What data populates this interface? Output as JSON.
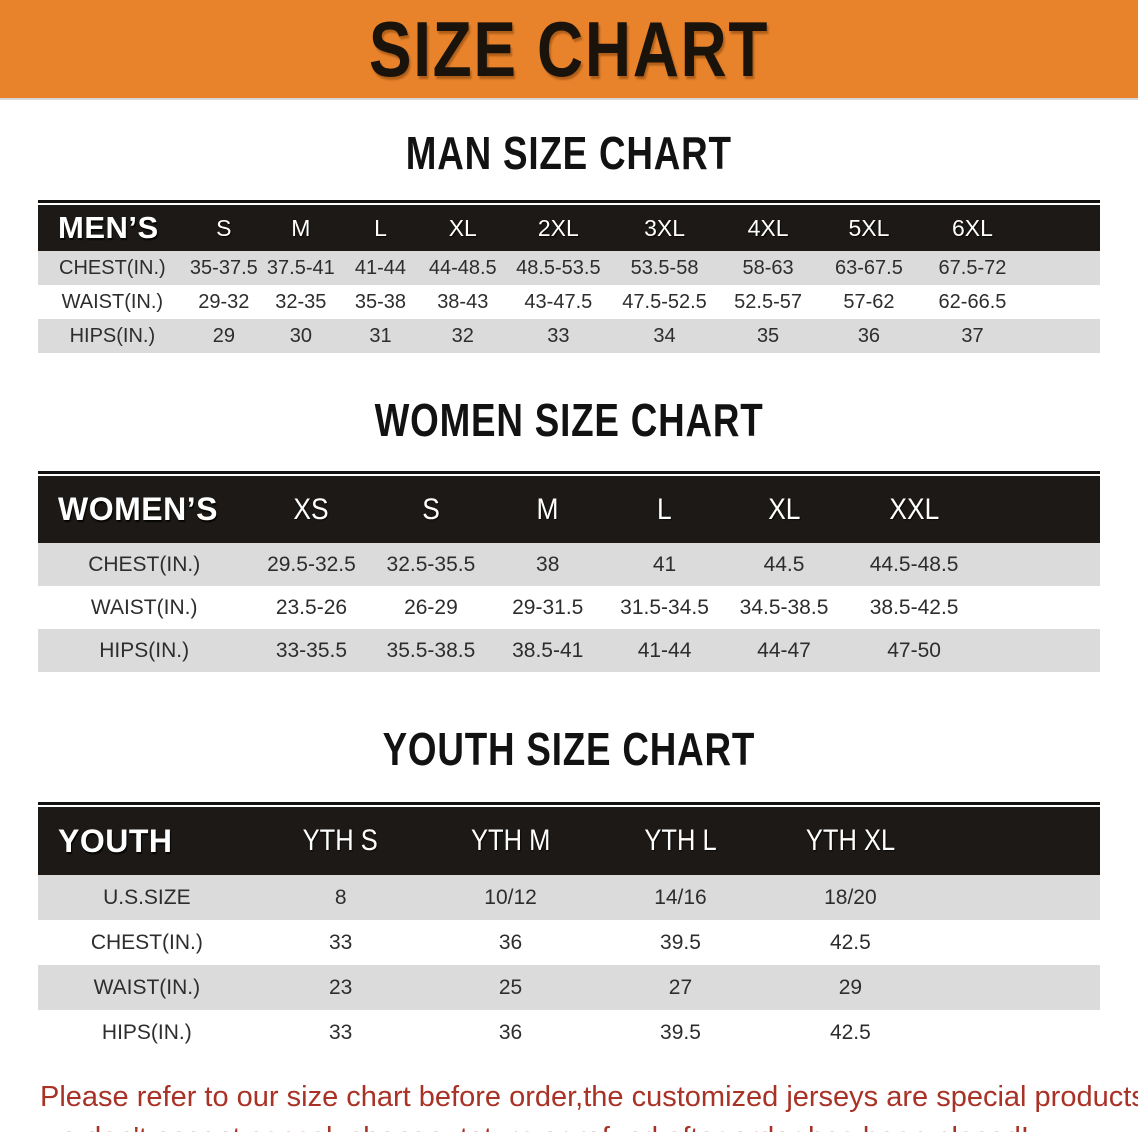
{
  "banner": {
    "title": "SIZE CHART"
  },
  "colors": {
    "banner_bg": "#E8832B",
    "banner_text": "#1A130B",
    "header_bar_bg": "#1C1916",
    "header_bar_text": "#FFFFFF",
    "row_alt_bg": "#DBDBDB",
    "row_bg": "#FFFFFF",
    "row_text": "#2D2D2D",
    "footer_text": "#A93226"
  },
  "sections": [
    {
      "id": "men",
      "heading": "MAN SIZE CHART",
      "corner_label": "MEN’S",
      "sizes": [
        "S",
        "M",
        "L",
        "XL",
        "2XL",
        "3XL",
        "4XL",
        "5XL",
        "6XL"
      ],
      "rows": [
        {
          "label": "CHEST(IN.)",
          "values": [
            "35-37.5",
            "37.5-41",
            "41-44",
            "44-48.5",
            "48.5-53.5",
            "53.5-58",
            "58-63",
            "63-67.5",
            "67.5-72"
          ]
        },
        {
          "label": "WAIST(IN.)",
          "values": [
            "29-32",
            "32-35",
            "35-38",
            "38-43",
            "43-47.5",
            "47.5-52.5",
            "52.5-57",
            "57-62",
            "62-66.5"
          ]
        },
        {
          "label": "HIPS(IN.)",
          "values": [
            "29",
            "30",
            "31",
            "32",
            "33",
            "34",
            "35",
            "36",
            "37"
          ]
        }
      ]
    },
    {
      "id": "women",
      "heading": "WOMEN SIZE CHART",
      "corner_label": "WOMEN’S",
      "sizes": [
        "XS",
        "S",
        "M",
        "L",
        "XL",
        "XXL"
      ],
      "rows": [
        {
          "label": "CHEST(IN.)",
          "values": [
            "29.5-32.5",
            "32.5-35.5",
            "38",
            "41",
            "44.5",
            "44.5-48.5"
          ]
        },
        {
          "label": "WAIST(IN.)",
          "values": [
            "23.5-26",
            "26-29",
            "29-31.5",
            "31.5-34.5",
            "34.5-38.5",
            "38.5-42.5"
          ]
        },
        {
          "label": "HIPS(IN.)",
          "values": [
            "33-35.5",
            "35.5-38.5",
            "38.5-41",
            "41-44",
            "44-47",
            "47-50"
          ]
        }
      ]
    },
    {
      "id": "youth",
      "heading": "YOUTH SIZE CHART",
      "corner_label": "YOUTH",
      "sizes": [
        "YTH S",
        "YTH M",
        "YTH L",
        "YTH XL"
      ],
      "rows": [
        {
          "label": "U.S.SIZE",
          "values": [
            "8",
            "10/12",
            "14/16",
            "18/20"
          ]
        },
        {
          "label": "CHEST(IN.)",
          "values": [
            "33",
            "36",
            "39.5",
            "42.5"
          ]
        },
        {
          "label": "WAIST(IN.)",
          "values": [
            "23",
            "25",
            "27",
            "29"
          ]
        },
        {
          "label": "HIPS(IN.)",
          "values": [
            "33",
            "36",
            "39.5",
            "42.5"
          ]
        }
      ]
    }
  ],
  "footer": {
    "line1": "Please refer to our size chart before order,the customized jerseys are special products,",
    "line2": "we don't accept cancel, change, teturn or refund after order has been placed!"
  }
}
